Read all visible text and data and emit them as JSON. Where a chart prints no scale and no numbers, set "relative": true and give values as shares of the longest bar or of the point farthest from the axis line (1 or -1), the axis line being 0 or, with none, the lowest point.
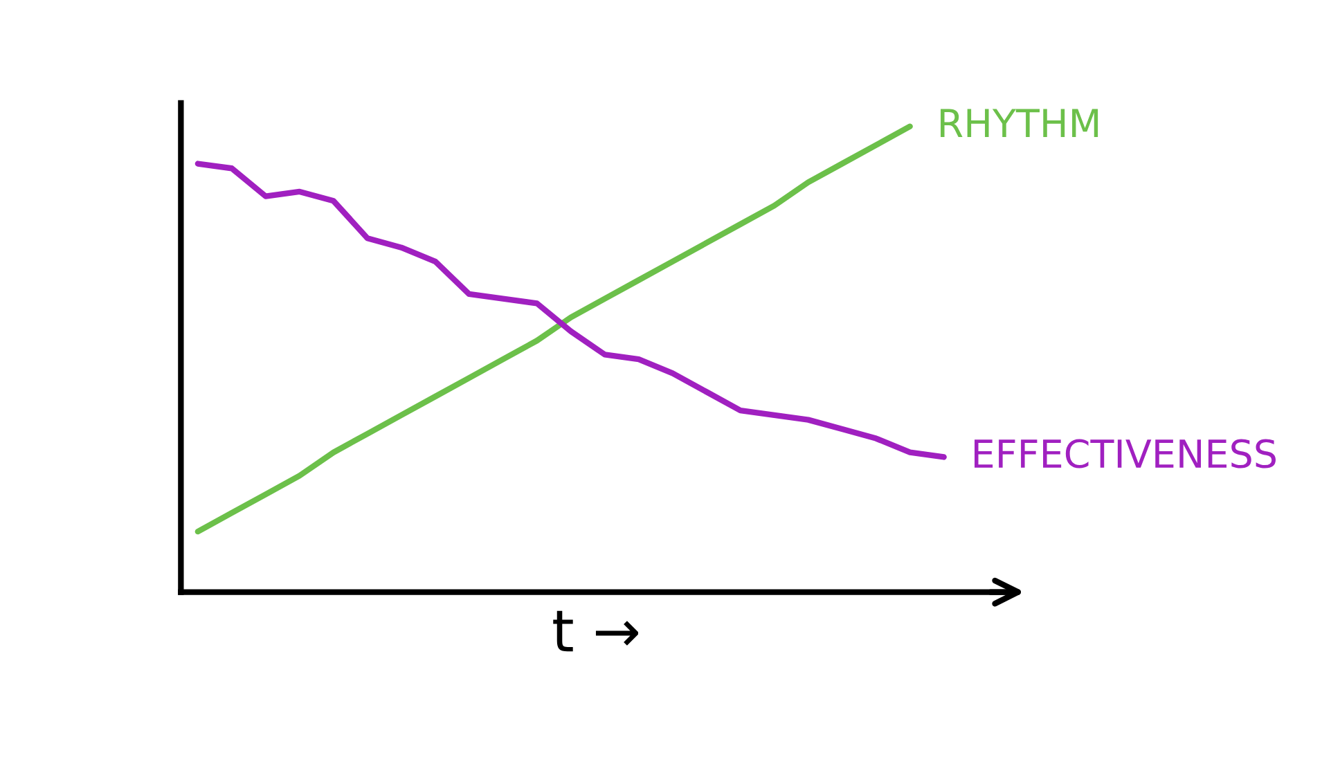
{
  "chart_data": {
    "type": "line",
    "relative": true,
    "xlabel": "t →",
    "legend": false,
    "marker": "none",
    "line_style": "solid",
    "categories": [
      null,
      null,
      null,
      null,
      null,
      null,
      null,
      null,
      null,
      null,
      null,
      null,
      null,
      null,
      null,
      null,
      null,
      null,
      null,
      null,
      null,
      null,
      null
    ],
    "series": [
      {
        "name": "RHYTHM",
        "color": "#6cc04a",
        "values": [
          0.13,
          0.17,
          0.21,
          0.25,
          0.3,
          0.34,
          0.38,
          0.42,
          0.46,
          0.5,
          0.54,
          0.59,
          0.63,
          0.67,
          0.71,
          0.75,
          0.79,
          0.83,
          0.88,
          0.92,
          0.96,
          1.0,
          null
        ]
      },
      {
        "name": "EFFECTIVENESS",
        "color": "#a020c0",
        "values": [
          0.92,
          0.91,
          0.85,
          0.86,
          0.84,
          0.76,
          0.74,
          0.71,
          0.64,
          0.63,
          0.62,
          0.56,
          0.51,
          0.5,
          0.47,
          0.43,
          0.39,
          0.38,
          0.37,
          0.35,
          0.33,
          0.3,
          0.29
        ]
      }
    ]
  }
}
